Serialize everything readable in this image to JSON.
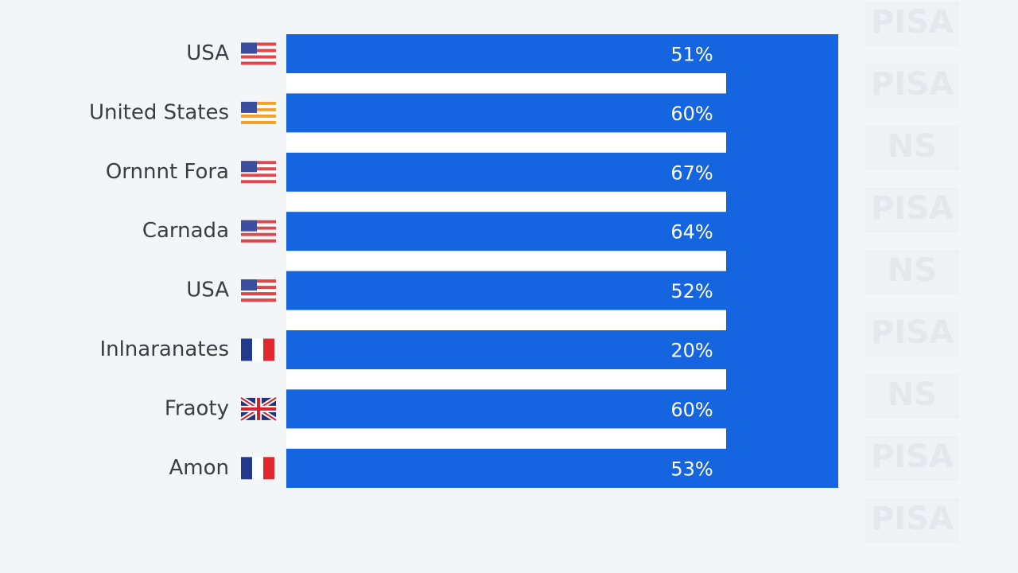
{
  "rows": [
    {
      "label": "USA",
      "value": "51%"
    },
    {
      "label": "United States",
      "value": "60%"
    },
    {
      "label": "Ornnnt Fora",
      "value": "67%"
    },
    {
      "label": "Carnada",
      "value": "64%"
    },
    {
      "label": "USA",
      "value": "52%"
    },
    {
      "label": "Inlnaranates",
      "value": "20%"
    },
    {
      "label": "Fraoty",
      "value": "60%"
    },
    {
      "label": "Amon",
      "value": "53%"
    }
  ],
  "watermarks": [
    "PISA",
    "PISA",
    "NS",
    "PISA",
    "NS",
    "PISA",
    "NS",
    "PISA",
    "PISA"
  ]
}
